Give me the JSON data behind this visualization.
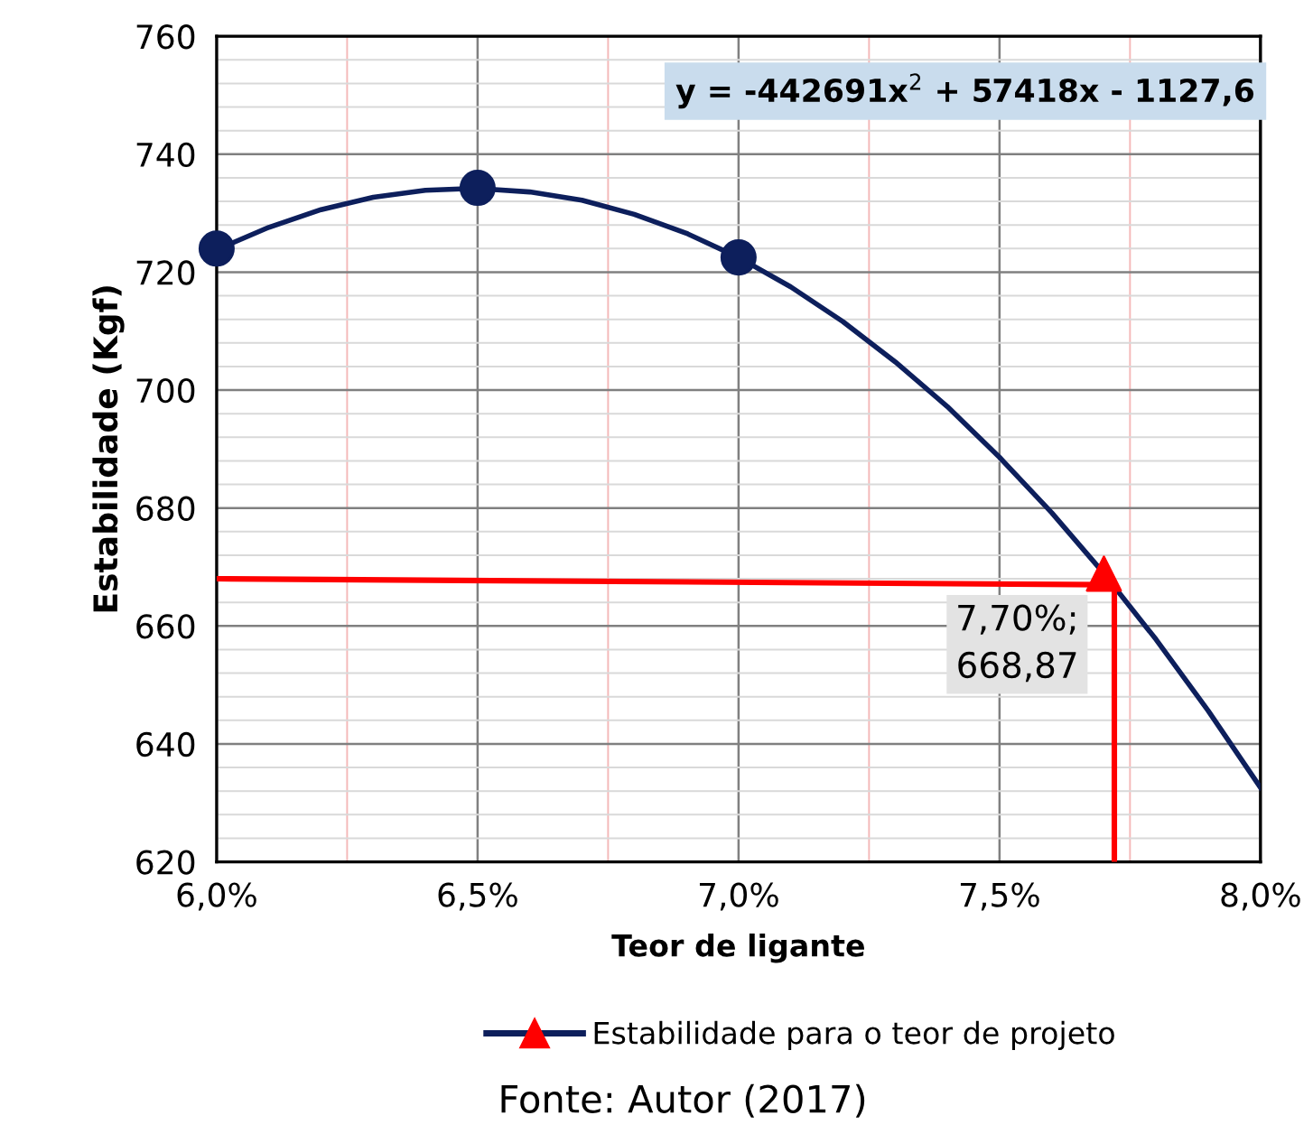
{
  "chart_data": {
    "type": "line",
    "xlabel": "Teor de ligante",
    "ylabel": "Estabilidade (Kgf)",
    "xlim": [
      6.0,
      8.0
    ],
    "ylim": [
      620,
      760
    ],
    "xticks": [
      {
        "value": 6.0,
        "label": "6,0%"
      },
      {
        "value": 6.25,
        "label": null
      },
      {
        "value": 6.5,
        "label": "6,5%"
      },
      {
        "value": 6.75,
        "label": null
      },
      {
        "value": 7.0,
        "label": "7,0%"
      },
      {
        "value": 7.25,
        "label": null
      },
      {
        "value": 7.5,
        "label": "7,5%"
      },
      {
        "value": 7.75,
        "label": null
      },
      {
        "value": 8.0,
        "label": "8,0%"
      }
    ],
    "yticks": [
      620,
      {
        "value": 624,
        "label": null
      },
      {
        "value": 628,
        "label": null
      },
      {
        "value": 632,
        "label": null
      },
      {
        "value": 636,
        "label": null
      },
      640,
      {
        "value": 644,
        "label": null
      },
      {
        "value": 648,
        "label": null
      },
      {
        "value": 652,
        "label": null
      },
      {
        "value": 656,
        "label": null
      },
      660,
      {
        "value": 664,
        "label": null
      },
      {
        "value": 668,
        "label": null
      },
      {
        "value": 672,
        "label": null
      },
      {
        "value": 676,
        "label": null
      },
      680,
      {
        "value": 684,
        "label": null
      },
      {
        "value": 688,
        "label": null
      },
      {
        "value": 692,
        "label": null
      },
      {
        "value": 696,
        "label": null
      },
      700,
      {
        "value": 704,
        "label": null
      },
      {
        "value": 708,
        "label": null
      },
      {
        "value": 712,
        "label": null
      },
      {
        "value": 716,
        "label": null
      },
      720,
      {
        "value": 724,
        "label": null
      },
      {
        "value": 728,
        "label": null
      },
      {
        "value": 732,
        "label": null
      },
      {
        "value": 736,
        "label": null
      },
      740,
      {
        "value": 744,
        "label": null
      },
      {
        "value": 748,
        "label": null
      },
      {
        "value": 752,
        "label": null
      },
      {
        "value": 756,
        "label": null
      },
      760
    ],
    "grid": true,
    "legend": "bottom",
    "series": [
      {
        "color": "#0d1f5c",
        "marker": "none",
        "x": [
          6.0,
          6.1,
          6.2,
          6.3,
          6.4,
          6.5,
          6.6,
          6.7,
          6.8,
          6.9,
          7.0,
          7.1,
          7.2,
          7.3,
          7.4,
          7.5,
          7.6,
          7.7,
          7.8,
          7.9,
          8.0
        ],
        "values": [
          723.8,
          727.6,
          730.6,
          732.7,
          733.9,
          734.2,
          733.6,
          732.2,
          729.8,
          726.6,
          722.5,
          717.5,
          711.6,
          704.8,
          697.2,
          688.6,
          679.2,
          668.9,
          657.7,
          645.6,
          632.6
        ]
      },
      {
        "type": "scatter",
        "color": "#0d1f5c",
        "marker": "circle",
        "x": [
          6.0,
          6.5,
          7.0
        ],
        "values": [
          724,
          734.3,
          722.5
        ]
      },
      {
        "color": "#ff0000",
        "marker": "none",
        "x": [
          6.0,
          7.7
        ],
        "values": [
          668,
          667
        ]
      },
      {
        "color": "#ff0000",
        "marker": "none",
        "x": [
          7.72,
          7.72
        ],
        "values": [
          667,
          620
        ]
      },
      {
        "type": "scatter",
        "name": "Estabilidade para o teor de projeto",
        "color": "#ff0000",
        "marker": "triangle",
        "x": [
          7.7
        ],
        "values": [
          668.87
        ],
        "value_labels": [
          "7,70%;\n668,87"
        ]
      }
    ],
    "annotations": [
      "y = -442691x$^{2}$ + 57418x - 1127,6",
      "Fonte: Autor (2017)"
    ]
  }
}
